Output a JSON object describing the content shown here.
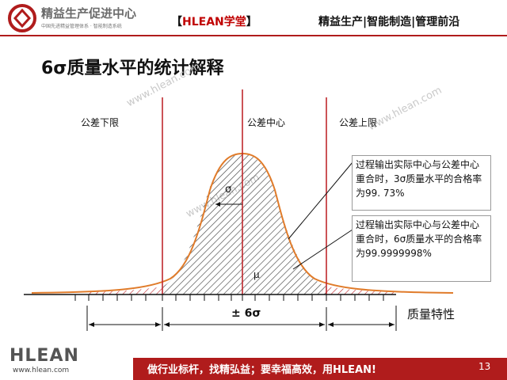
{
  "header": {
    "logo_icon": "circle-logo-icon",
    "company_name": "精益生产促进中心",
    "company_tagline": "中国先进精益管理体系 · 智能制造系统",
    "brand": {
      "open": "【",
      "hlean": "HLEAN",
      "xuetang": "学堂",
      "close": "】"
    },
    "nav_text": "精益生产|智能制造|管理前沿",
    "accent_color": "#b01c1c"
  },
  "slide": {
    "title": "6σ质量水平的统计解释",
    "labels": {
      "lower_limit": "公差下限",
      "center": "公差中心",
      "upper_limit": "公差上限",
      "sigma": "σ",
      "mu": "μ",
      "span": "± 6σ",
      "quality_characteristic": "质量特性"
    },
    "callout_3sigma": "过程输出实际中心与公差中心重合时，3σ质量水平的合格率为99. 73%",
    "callout_6sigma": "过程输出实际中心与公差中心重合时，6σ质量水平的合格率为99.9999998%",
    "watermarks": [
      "www.hlean.com",
      "www.hlean.com",
      "www.hlean.com"
    ]
  },
  "footer": {
    "logo": "HLEAN",
    "url": "www.hlean.com",
    "slogan": "做行业标杆，找精弘益；要幸福高效，用HLEAN!",
    "page_number": "13"
  },
  "colors": {
    "curve": "#e07b2a",
    "limit_line": "#c0282d",
    "hatch": "#444444",
    "footer_bar": "#b01c1c"
  }
}
